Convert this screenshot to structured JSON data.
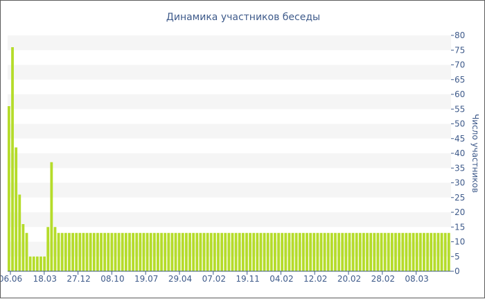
{
  "chart_data": {
    "type": "bar",
    "title": "Динамика участников беседы",
    "ylabel": "Число участников",
    "xlabel": "",
    "ylim": [
      0,
      80
    ],
    "y_ticks": [
      "0",
      "5",
      "10",
      "15",
      "20",
      "25",
      "30",
      "35",
      "40",
      "45",
      "50",
      "55",
      "60",
      "65",
      "70",
      "75",
      "80"
    ],
    "x_tick_labels": [
      "06.06",
      "18.03",
      "27.12",
      "08.10",
      "19.07",
      "29.04",
      "07.02",
      "19.11",
      "04.02",
      "12.02",
      "20.02",
      "28.02",
      "08.03"
    ],
    "grid": "horizontal-bands",
    "bar_color": "#b5dc2a",
    "values": [
      56,
      76,
      42,
      26,
      16,
      13,
      5,
      5,
      5,
      5,
      5,
      15,
      37,
      15,
      13,
      13,
      13,
      13,
      13,
      13,
      13,
      13,
      13,
      13,
      13,
      13,
      13,
      13,
      13,
      13,
      13,
      13,
      13,
      13,
      13,
      13,
      13,
      13,
      13,
      13,
      13,
      13,
      13,
      13,
      13,
      13,
      13,
      13,
      13,
      13,
      13,
      13,
      13,
      13,
      13,
      13,
      13,
      13,
      13,
      13,
      13,
      13,
      13,
      13,
      13,
      13,
      13,
      13,
      13,
      13,
      13,
      13,
      13,
      13,
      13,
      13,
      13,
      13,
      13,
      13,
      13,
      13,
      13,
      13,
      13,
      13,
      13,
      13,
      13,
      13,
      13,
      13,
      13,
      13,
      13,
      13,
      13,
      13,
      13,
      13,
      13,
      13,
      13,
      13,
      13,
      13,
      13,
      13,
      13,
      13,
      13,
      13,
      13,
      13,
      13,
      13,
      13,
      13,
      13,
      13,
      13,
      13,
      13,
      13,
      13
    ]
  }
}
